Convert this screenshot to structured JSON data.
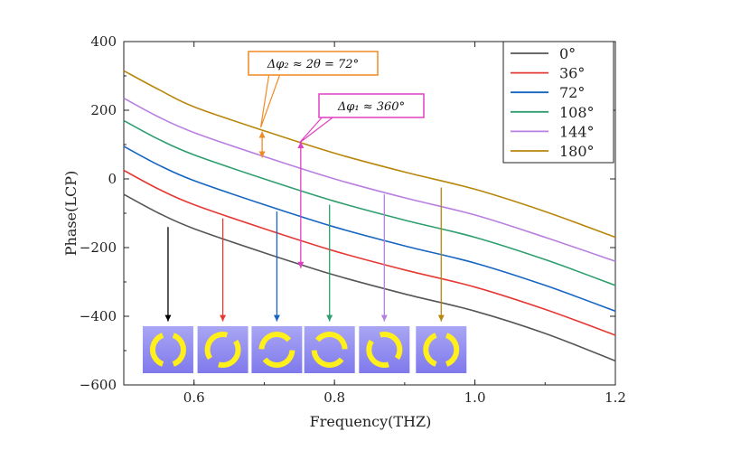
{
  "chart_data": {
    "type": "line",
    "xlabel": "Frequency(THZ)",
    "ylabel": "Phase(LCP)",
    "xlim": [
      0.5,
      1.2
    ],
    "ylim": [
      -600,
      400
    ],
    "x_ticks": [
      0.6,
      0.8,
      1.0,
      1.2
    ],
    "x_tick_labels": [
      "0.6",
      "0.8",
      "1.0",
      "1.2"
    ],
    "y_ticks": [
      -600,
      -400,
      -200,
      0,
      200,
      400
    ],
    "y_tick_labels": [
      "−600",
      "−400",
      "−200",
      "0",
      "200",
      "400"
    ],
    "grid": false,
    "legend_position": "top-right",
    "series": [
      {
        "name": "0°",
        "color": "#555555",
        "points": [
          [
            0.5,
            -45
          ],
          [
            0.55,
            -100
          ],
          [
            0.6,
            -145
          ],
          [
            0.7,
            -215
          ],
          [
            0.8,
            -280
          ],
          [
            0.9,
            -335
          ],
          [
            1.0,
            -385
          ],
          [
            1.1,
            -450
          ],
          [
            1.2,
            -530
          ]
        ]
      },
      {
        "name": "36°",
        "color": "#e53935",
        "points": [
          [
            0.5,
            25
          ],
          [
            0.55,
            -30
          ],
          [
            0.6,
            -75
          ],
          [
            0.7,
            -145
          ],
          [
            0.8,
            -210
          ],
          [
            0.9,
            -265
          ],
          [
            1.0,
            -315
          ],
          [
            1.1,
            -380
          ],
          [
            1.2,
            -455
          ]
        ]
      },
      {
        "name": "72°",
        "color": "#1565c0",
        "points": [
          [
            0.5,
            95
          ],
          [
            0.55,
            40
          ],
          [
            0.6,
            -5
          ],
          [
            0.7,
            -75
          ],
          [
            0.8,
            -140
          ],
          [
            0.9,
            -195
          ],
          [
            1.0,
            -245
          ],
          [
            1.1,
            -310
          ],
          [
            1.2,
            -385
          ]
        ]
      },
      {
        "name": "108°",
        "color": "#2e9e6e",
        "points": [
          [
            0.5,
            170
          ],
          [
            0.55,
            115
          ],
          [
            0.6,
            70
          ],
          [
            0.7,
            0
          ],
          [
            0.8,
            -65
          ],
          [
            0.9,
            -120
          ],
          [
            1.0,
            -170
          ],
          [
            1.1,
            -235
          ],
          [
            1.2,
            -310
          ]
        ]
      },
      {
        "name": "144°",
        "color": "#b97fe0",
        "points": [
          [
            0.5,
            235
          ],
          [
            0.55,
            180
          ],
          [
            0.6,
            135
          ],
          [
            0.7,
            65
          ],
          [
            0.8,
            0
          ],
          [
            0.9,
            -55
          ],
          [
            1.0,
            -105
          ],
          [
            1.1,
            -170
          ],
          [
            1.2,
            -240
          ]
        ]
      },
      {
        "name": "180°",
        "color": "#b8860b",
        "points": [
          [
            0.5,
            315
          ],
          [
            0.55,
            260
          ],
          [
            0.6,
            210
          ],
          [
            0.7,
            140
          ],
          [
            0.8,
            75
          ],
          [
            0.9,
            20
          ],
          [
            1.0,
            -30
          ],
          [
            1.1,
            -95
          ],
          [
            1.2,
            -170
          ]
        ]
      }
    ],
    "annotations": [
      {
        "text": "Δφ₂ ≈ 2θ = 72°",
        "border_color": "#f08a24",
        "arrow_x": 0.697,
        "arrow_from": 138,
        "arrow_to": 62,
        "pointer_to": [
          0.695,
          150
        ]
      },
      {
        "text": "Δφ₁  ≈ 360°",
        "border_color": "#e040c0",
        "arrow_x": 0.752,
        "arrow_from": 108,
        "arrow_to": -260,
        "pointer_to": [
          0.75,
          105
        ]
      }
    ],
    "markers": [
      {
        "x": 0.563,
        "from": -140,
        "to": -420,
        "color": "#000000",
        "icon_gap_deg": 0
      },
      {
        "x": 0.641,
        "from": -115,
        "to": -420,
        "color": "#e53935",
        "icon_gap_deg": 36
      },
      {
        "x": 0.718,
        "from": -95,
        "to": -420,
        "color": "#1565c0",
        "icon_gap_deg": 72
      },
      {
        "x": 0.793,
        "from": -75,
        "to": -420,
        "color": "#2e9e6e",
        "icon_gap_deg": 108
      },
      {
        "x": 0.871,
        "from": -45,
        "to": -420,
        "color": "#b97fe0",
        "icon_gap_deg": 144
      },
      {
        "x": 0.952,
        "from": -25,
        "to": -420,
        "color": "#b8860b",
        "icon_gap_deg": 180
      }
    ]
  }
}
